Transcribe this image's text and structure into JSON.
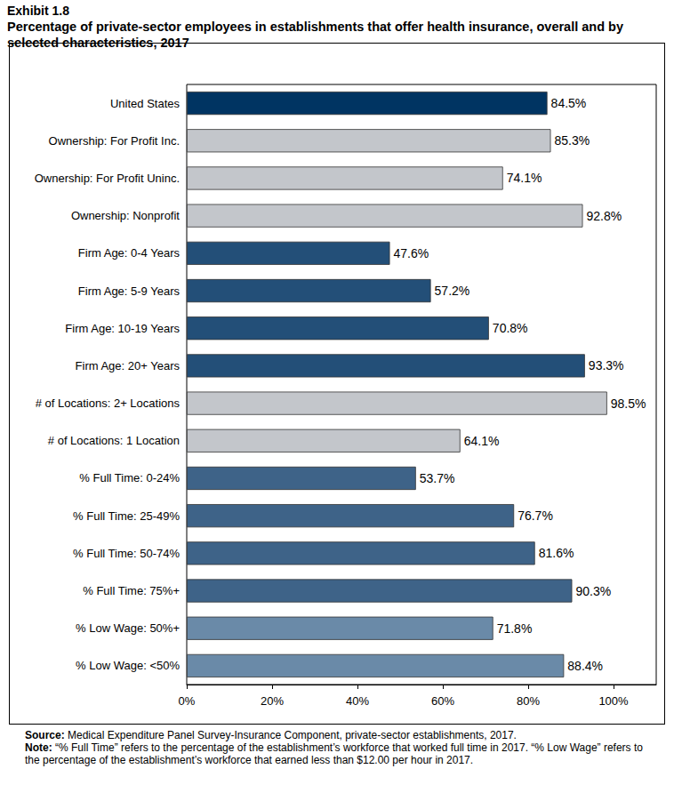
{
  "chart_data": {
    "type": "bar",
    "orientation": "horizontal",
    "title": "Exhibit 1.8",
    "subtitle": "Percentage of private-sector employees in establishments that offer health insurance, overall and by selected characteristics, 2017",
    "categories": [
      "United States",
      "Ownership: For Profit Inc.",
      "Ownership: For Profit Uninc.",
      "Ownership: Nonprofit",
      "Firm Age: 0-4 Years",
      "Firm Age: 5-9 Years",
      "Firm Age: 10-19 Years",
      "Firm Age: 20+ Years",
      "# of Locations: 2+ Locations",
      "# of Locations: 1 Location",
      "% Full Time: 0-24%",
      "% Full Time: 25-49%",
      "% Full Time: 50-74%",
      "% Full Time: 75%+",
      "% Low Wage: 50%+",
      "% Low Wage: <50%"
    ],
    "values": [
      84.5,
      85.3,
      74.1,
      92.8,
      47.6,
      57.2,
      70.8,
      93.3,
      98.5,
      64.1,
      53.7,
      76.7,
      81.6,
      90.3,
      71.8,
      88.4
    ],
    "value_labels": [
      "84.5%",
      "85.3%",
      "74.1%",
      "92.8%",
      "47.6%",
      "57.2%",
      "70.8%",
      "93.3%",
      "98.5%",
      "64.1%",
      "53.7%",
      "76.7%",
      "81.6%",
      "90.3%",
      "71.8%",
      "88.4%"
    ],
    "colors": [
      "#003462",
      "#c3c6cb",
      "#c3c6cb",
      "#c3c6cb",
      "#234f78",
      "#234f78",
      "#234f78",
      "#234f78",
      "#c3c6cb",
      "#c3c6cb",
      "#3e6388",
      "#3e6388",
      "#3e6388",
      "#3e6388",
      "#6a8aa8",
      "#6a8aa8"
    ],
    "xlim": [
      0,
      110
    ],
    "xticks": [
      {
        "value": 0,
        "label": "0%"
      },
      {
        "value": 20,
        "label": "20%"
      },
      {
        "value": 40,
        "label": "40%"
      },
      {
        "value": 60,
        "label": "60%"
      },
      {
        "value": 80,
        "label": "80%"
      },
      {
        "value": 100,
        "label": "100%"
      }
    ],
    "data_labels": true,
    "grid": false,
    "notes": [
      {
        "label": "Source:",
        "text": "Medical Expenditure Panel Survey-Insurance Component, private-sector establishments, 2017."
      },
      {
        "label": "Note:",
        "text": "“% Full Time” refers to the percentage of the establishment’s workforce that worked full time in 2017. “% Low Wage” refers to the percentage of the establishment’s workforce that earned less than $12.00 per hour in 2017."
      }
    ]
  }
}
